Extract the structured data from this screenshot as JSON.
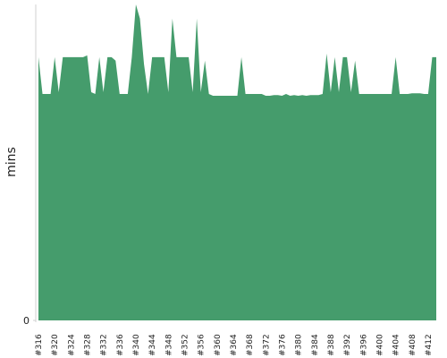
{
  "chart_data": {
    "type": "area",
    "y_label": "mins",
    "color": "#459c6c",
    "categories": [
      "#316",
      null,
      null,
      null,
      "#320",
      null,
      null,
      null,
      "#324",
      null,
      null,
      null,
      "#328",
      null,
      null,
      null,
      "#332",
      null,
      null,
      null,
      "#336",
      null,
      null,
      null,
      "#340",
      null,
      null,
      null,
      "#344",
      null,
      null,
      null,
      "#348",
      null,
      null,
      null,
      "#352",
      null,
      null,
      null,
      "#356",
      null,
      null,
      null,
      "#360",
      null,
      null,
      null,
      "#364",
      null,
      null,
      null,
      "#368",
      null,
      null,
      null,
      "#372",
      null,
      null,
      null,
      "#376",
      null,
      null,
      null,
      "#380",
      null,
      null,
      null,
      "#384",
      null,
      null,
      null,
      "#388",
      null,
      null,
      null,
      "#392",
      null,
      null,
      null,
      "#396",
      null,
      null,
      null,
      "#400",
      null,
      null,
      null,
      "#404",
      null,
      null,
      null,
      "#408",
      null,
      null,
      null,
      "#412",
      null,
      null
    ],
    "values": [
      7.5,
      6.45,
      6.45,
      6.45,
      7.5,
      6.5,
      7.5,
      7.5,
      7.5,
      7.5,
      7.5,
      7.5,
      7.55,
      6.5,
      6.45,
      7.5,
      6.5,
      7.5,
      7.5,
      7.4,
      6.45,
      6.45,
      6.45,
      7.5,
      9,
      8.6,
      7.3,
      6.45,
      7.5,
      7.5,
      7.5,
      7.5,
      6.5,
      8.6,
      7.5,
      7.5,
      7.5,
      7.5,
      6.5,
      8.6,
      6.5,
      7.4,
      6.45,
      6.4,
      6.4,
      6.4,
      6.4,
      6.4,
      6.4,
      6.4,
      7.5,
      6.45,
      6.45,
      6.45,
      6.45,
      6.45,
      6.4,
      6.4,
      6.42,
      6.42,
      6.4,
      6.45,
      6.4,
      6.42,
      6.4,
      6.42,
      6.4,
      6.42,
      6.42,
      6.42,
      6.45,
      7.6,
      6.5,
      7.5,
      6.5,
      7.5,
      7.5,
      6.5,
      7.4,
      6.45,
      6.45,
      6.45,
      6.45,
      6.45,
      6.45,
      6.45,
      6.45,
      6.45,
      7.5,
      6.45,
      6.45,
      6.45,
      6.47,
      6.47,
      6.47,
      6.45,
      6.45,
      7.5,
      7.5
    ],
    "ylim": [
      0,
      9
    ],
    "yticks": [
      0
    ]
  }
}
